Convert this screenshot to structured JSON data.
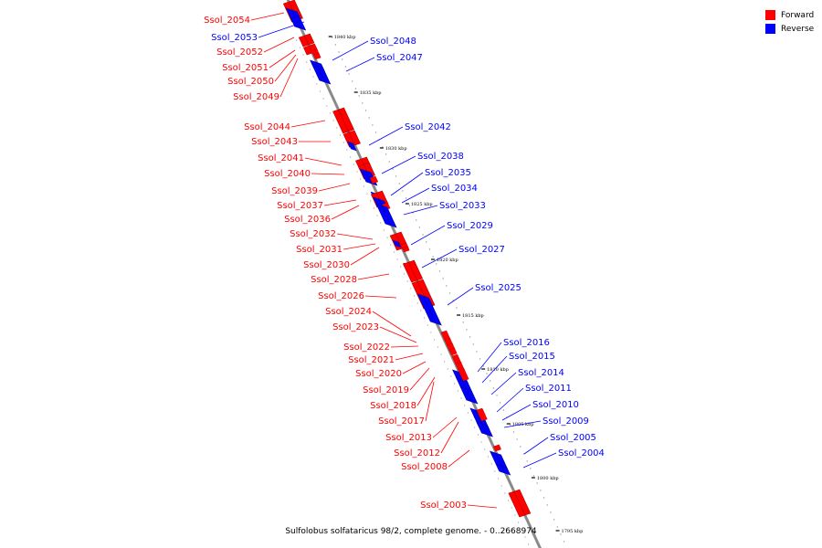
{
  "legend": {
    "forward": {
      "label": "Forward",
      "color": "#ff0000"
    },
    "reverse": {
      "label": "Reverse",
      "color": "#0000ff"
    }
  },
  "caption": "Sulfolobus solfataricus 98/2, complete genome. - 0..2668974",
  "ticks": [
    {
      "label": "1840 kbp",
      "kbp": 1840
    },
    {
      "label": "1835 kbp",
      "kbp": 1835
    },
    {
      "label": "1830 kbp",
      "kbp": 1830
    },
    {
      "label": "1825 kbp",
      "kbp": 1825
    },
    {
      "label": "1820 kbp",
      "kbp": 1820
    },
    {
      "label": "1815 kbp",
      "kbp": 1815
    },
    {
      "label": "1810 kbp",
      "kbp": 1810
    },
    {
      "label": "1805 kbp",
      "kbp": 1805
    },
    {
      "label": "1800 kbp",
      "kbp": 1800
    },
    {
      "label": "1795 kbp",
      "kbp": 1795
    }
  ],
  "genes": [
    {
      "name": "Ssol_2054",
      "strand": "forward"
    },
    {
      "name": "Ssol_2053",
      "strand": "reverse"
    },
    {
      "name": "Ssol_2052",
      "strand": "forward"
    },
    {
      "name": "Ssol_2051",
      "strand": "forward"
    },
    {
      "name": "Ssol_2050",
      "strand": "forward"
    },
    {
      "name": "Ssol_2049",
      "strand": "forward"
    },
    {
      "name": "Ssol_2048",
      "strand": "reverse"
    },
    {
      "name": "Ssol_2047",
      "strand": "reverse"
    },
    {
      "name": "Ssol_2044",
      "strand": "forward"
    },
    {
      "name": "Ssol_2043",
      "strand": "forward"
    },
    {
      "name": "Ssol_2042",
      "strand": "reverse"
    },
    {
      "name": "Ssol_2041",
      "strand": "forward"
    },
    {
      "name": "Ssol_2040",
      "strand": "forward"
    },
    {
      "name": "Ssol_2038",
      "strand": "reverse"
    },
    {
      "name": "Ssol_2039",
      "strand": "forward"
    },
    {
      "name": "Ssol_2035",
      "strand": "reverse"
    },
    {
      "name": "Ssol_2037",
      "strand": "forward"
    },
    {
      "name": "Ssol_2034",
      "strand": "reverse"
    },
    {
      "name": "Ssol_2036",
      "strand": "forward"
    },
    {
      "name": "Ssol_2033",
      "strand": "reverse"
    },
    {
      "name": "Ssol_2032",
      "strand": "forward"
    },
    {
      "name": "Ssol_2029",
      "strand": "reverse"
    },
    {
      "name": "Ssol_2031",
      "strand": "forward"
    },
    {
      "name": "Ssol_2030",
      "strand": "forward"
    },
    {
      "name": "Ssol_2027",
      "strand": "reverse"
    },
    {
      "name": "Ssol_2028",
      "strand": "forward"
    },
    {
      "name": "Ssol_2026",
      "strand": "forward"
    },
    {
      "name": "Ssol_2025",
      "strand": "reverse"
    },
    {
      "name": "Ssol_2024",
      "strand": "forward"
    },
    {
      "name": "Ssol_2023",
      "strand": "forward"
    },
    {
      "name": "Ssol_2022",
      "strand": "forward"
    },
    {
      "name": "Ssol_2016",
      "strand": "reverse"
    },
    {
      "name": "Ssol_2021",
      "strand": "forward"
    },
    {
      "name": "Ssol_2015",
      "strand": "reverse"
    },
    {
      "name": "Ssol_2020",
      "strand": "forward"
    },
    {
      "name": "Ssol_2014",
      "strand": "reverse"
    },
    {
      "name": "Ssol_2019",
      "strand": "forward"
    },
    {
      "name": "Ssol_2011",
      "strand": "reverse"
    },
    {
      "name": "Ssol_2018",
      "strand": "forward"
    },
    {
      "name": "Ssol_2010",
      "strand": "reverse"
    },
    {
      "name": "Ssol_2017",
      "strand": "forward"
    },
    {
      "name": "Ssol_2009",
      "strand": "reverse"
    },
    {
      "name": "Ssol_2013",
      "strand": "forward"
    },
    {
      "name": "Ssol_2005",
      "strand": "reverse"
    },
    {
      "name": "Ssol_2012",
      "strand": "forward"
    },
    {
      "name": "Ssol_2004",
      "strand": "reverse"
    },
    {
      "name": "Ssol_2008",
      "strand": "forward"
    },
    {
      "name": "Ssol_2003",
      "strand": "forward"
    }
  ]
}
